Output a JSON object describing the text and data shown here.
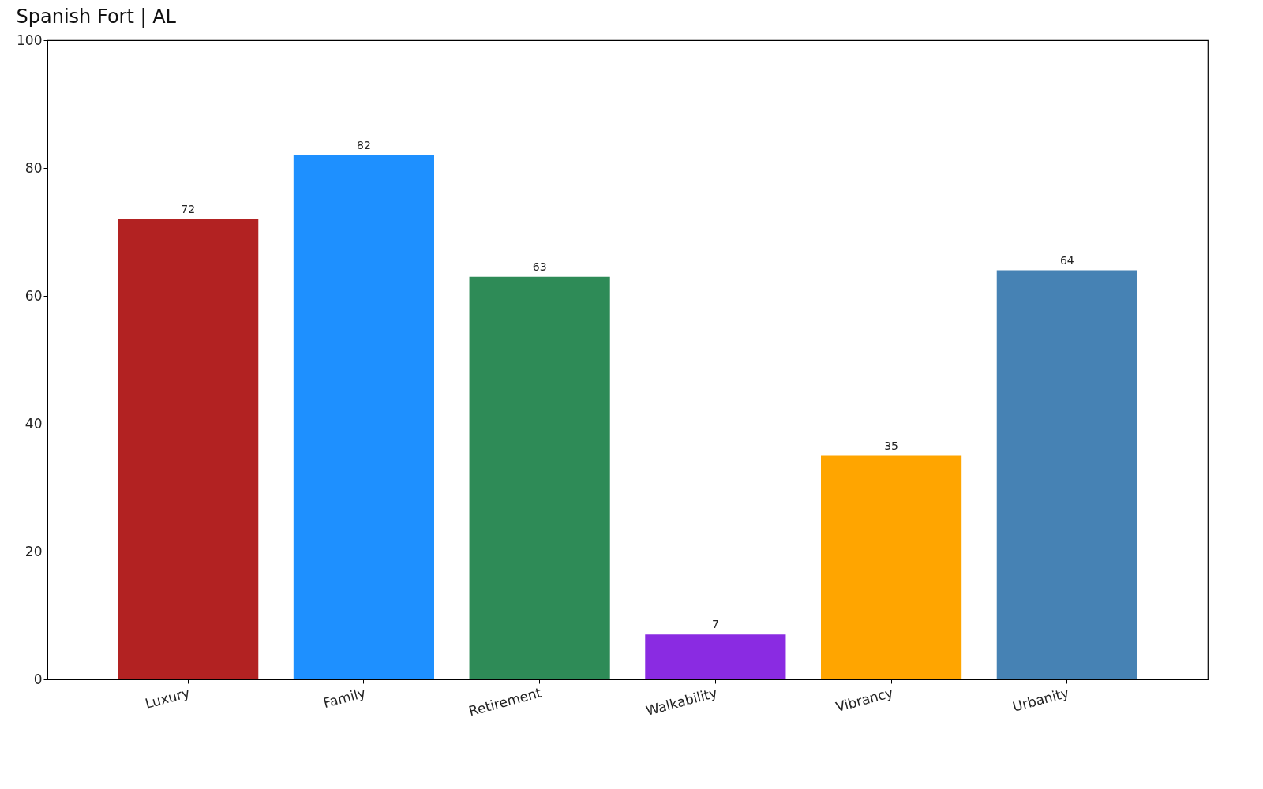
{
  "chart_data": {
    "type": "bar",
    "title": "Spanish Fort | AL",
    "categories": [
      "Luxury",
      "Family",
      "Retirement",
      "Walkability",
      "Vibrancy",
      "Urbanity"
    ],
    "values": [
      72,
      82,
      63,
      7,
      35,
      64
    ],
    "colors": [
      "#b22222",
      "#1e90ff",
      "#2e8b57",
      "#8a2be2",
      "#ffa500",
      "#4682b4"
    ],
    "ylim": [
      0,
      100
    ],
    "yticks": [
      0,
      20,
      40,
      60,
      80,
      100
    ],
    "data_labels": true
  }
}
